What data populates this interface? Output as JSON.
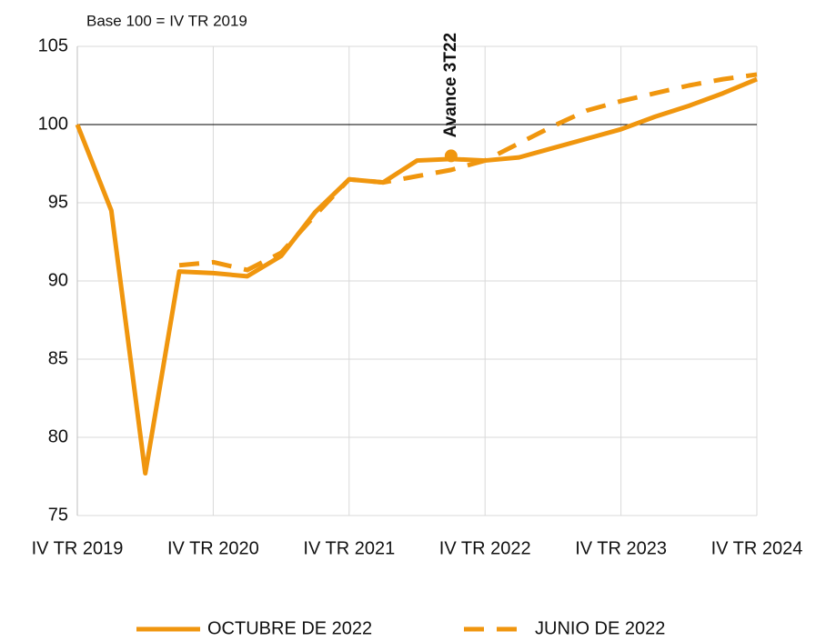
{
  "chart_data": {
    "type": "line",
    "subtitle": "Base 100 = IV TR 2019",
    "categories": [
      "IV TR 2019",
      null,
      null,
      null,
      "IV TR 2020",
      null,
      null,
      null,
      "IV TR 2021",
      null,
      null,
      null,
      "IV TR 2022",
      null,
      null,
      null,
      "IV TR 2023",
      null,
      null,
      null,
      "IV TR 2024"
    ],
    "series": [
      {
        "name": "OCTUBRE DE 2022",
        "color": "#f0960e",
        "dashed": false,
        "values": [
          100,
          94.5,
          77.7,
          90.6,
          90.5,
          90.3,
          91.6,
          94.4,
          96.5,
          96.3,
          97.7,
          97.8,
          97.7,
          97.9,
          98.5,
          99.1,
          99.7,
          100.5,
          101.2,
          102.0,
          102.9
        ]
      },
      {
        "name": "JUNIO DE 2022",
        "color": "#f0960e",
        "dashed": true,
        "values": [
          null,
          null,
          null,
          91.0,
          91.2,
          90.7,
          91.8,
          94.2,
          96.5,
          96.3,
          96.7,
          97.1,
          97.7,
          98.8,
          99.9,
          100.9,
          101.5,
          102.0,
          102.5,
          102.9,
          103.2
        ]
      }
    ],
    "annotation": {
      "text": "Avance 3T22",
      "category_index": 11,
      "value": 98.0
    },
    "reference_line": 100,
    "ylim": [
      75,
      105
    ],
    "yticks": [
      75,
      80,
      85,
      90,
      95,
      100,
      105
    ],
    "grid": true,
    "legend": "bottom"
  }
}
